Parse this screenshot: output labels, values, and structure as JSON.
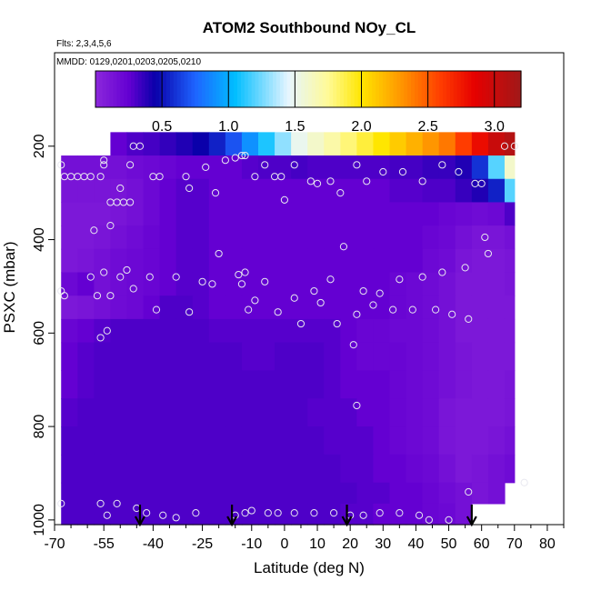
{
  "chart_data": {
    "type": "heatmap",
    "title": "ATOM2 Southbound NOy_CL",
    "notes": [
      "Flts: 2,3,4,5,6",
      "MMDD: 0129,0201,0203,0205,0210"
    ],
    "xlabel": "Latitude (deg N)",
    "ylabel": "PSXC (mbar)",
    "xlim": [
      -70,
      85
    ],
    "ylim": [
      1010,
      0
    ],
    "x_ticks": [
      -70,
      -55,
      -40,
      -25,
      -10,
      0,
      10,
      20,
      30,
      40,
      50,
      60,
      70,
      80
    ],
    "x_minor_ticks": [
      -65,
      -60,
      -50,
      -45,
      -35,
      -30,
      -20,
      -15,
      -5,
      5,
      15,
      25,
      35,
      45,
      55,
      65,
      75,
      85
    ],
    "y_ticks": [
      200,
      400,
      600,
      800,
      1000
    ],
    "colorbar": {
      "range": [
        0,
        3.2
      ],
      "ticks": [
        0.5,
        1.0,
        1.5,
        2.0,
        2.5,
        3.0
      ]
    },
    "field": {
      "lat_edges": [
        -68,
        -63,
        -58,
        -53,
        -48,
        -43,
        -38,
        -33,
        -28,
        -23,
        -18,
        -13,
        -8,
        -3,
        2,
        7,
        12,
        17,
        22,
        27,
        32,
        37,
        42,
        47,
        52,
        57,
        62,
        67,
        70
      ],
      "p_edges": [
        170,
        220,
        270,
        320,
        370,
        420,
        470,
        520,
        570,
        620,
        680,
        740,
        800,
        860,
        920,
        965,
        1010
      ],
      "values": [
        [
          null,
          null,
          null,
          0.25,
          0.3,
          0.32,
          0.36,
          0.4,
          0.45,
          0.55,
          0.7,
          0.9,
          1.1,
          1.3,
          1.5,
          1.6,
          1.7,
          1.8,
          1.9,
          2.0,
          2.1,
          2.2,
          2.3,
          2.4,
          2.6,
          2.8,
          3.0,
          3.1
        ],
        [
          0.15,
          0.15,
          0.15,
          0.15,
          0.18,
          0.2,
          0.22,
          0.25,
          0.25,
          0.25,
          0.25,
          0.28,
          0.3,
          0.3,
          0.32,
          0.3,
          0.3,
          0.3,
          0.3,
          0.3,
          0.32,
          0.32,
          0.35,
          0.35,
          0.4,
          0.6,
          1.2,
          1.6
        ],
        [
          0.12,
          0.12,
          0.12,
          0.12,
          0.15,
          0.2,
          0.25,
          0.28,
          0.28,
          0.25,
          0.25,
          0.25,
          0.25,
          0.25,
          0.25,
          0.25,
          0.25,
          0.25,
          0.25,
          0.25,
          0.28,
          0.28,
          0.3,
          0.3,
          0.35,
          0.4,
          0.55,
          1.2
        ],
        [
          0.1,
          0.1,
          0.1,
          0.12,
          0.15,
          0.2,
          0.25,
          0.28,
          0.28,
          0.25,
          0.25,
          0.25,
          0.25,
          0.25,
          0.25,
          0.25,
          0.25,
          0.25,
          0.25,
          0.25,
          0.25,
          0.25,
          0.25,
          0.22,
          0.2,
          0.18,
          0.2,
          0.3
        ],
        [
          0.1,
          0.1,
          0.12,
          0.15,
          0.18,
          0.22,
          0.25,
          0.28,
          0.28,
          0.25,
          0.25,
          0.25,
          0.25,
          0.25,
          0.25,
          0.25,
          0.25,
          0.25,
          0.25,
          0.25,
          0.25,
          0.25,
          0.22,
          0.2,
          0.15,
          0.12,
          0.12,
          0.15
        ],
        [
          0.1,
          0.12,
          0.15,
          0.18,
          0.2,
          0.22,
          0.25,
          0.28,
          0.28,
          0.25,
          0.25,
          0.25,
          0.25,
          0.25,
          0.25,
          0.25,
          0.25,
          0.25,
          0.25,
          0.25,
          0.25,
          0.25,
          0.2,
          0.18,
          0.12,
          0.1,
          0.1,
          0.12
        ],
        [
          0.2,
          0.25,
          0.15,
          0.18,
          0.2,
          0.22,
          0.25,
          0.28,
          0.28,
          0.25,
          0.25,
          0.25,
          0.25,
          0.25,
          0.25,
          0.25,
          0.25,
          0.25,
          0.25,
          0.25,
          0.22,
          0.2,
          0.18,
          0.15,
          0.1,
          0.1,
          0.1,
          0.12
        ],
        [
          0.1,
          0.12,
          0.15,
          0.18,
          0.2,
          0.25,
          0.3,
          0.3,
          0.28,
          0.25,
          0.25,
          0.25,
          0.25,
          0.25,
          0.25,
          0.25,
          0.25,
          0.25,
          0.25,
          0.25,
          0.22,
          0.2,
          0.18,
          0.15,
          0.1,
          0.1,
          0.1,
          0.1
        ],
        [
          0.22,
          0.25,
          0.28,
          0.3,
          0.3,
          0.3,
          0.3,
          0.3,
          0.3,
          0.28,
          0.28,
          0.28,
          0.28,
          0.28,
          0.28,
          0.28,
          0.28,
          0.25,
          0.22,
          0.22,
          0.2,
          0.2,
          0.18,
          0.15,
          0.1,
          0.1,
          0.1,
          0.1
        ],
        [
          0.25,
          0.28,
          0.3,
          0.3,
          0.3,
          0.3,
          0.3,
          0.3,
          0.3,
          0.3,
          0.3,
          0.28,
          0.28,
          0.3,
          0.3,
          0.3,
          0.28,
          0.25,
          0.22,
          0.22,
          0.22,
          0.2,
          0.18,
          0.15,
          0.12,
          0.1,
          0.1,
          0.1
        ],
        [
          0.25,
          0.28,
          0.3,
          0.3,
          0.3,
          0.3,
          0.3,
          0.3,
          0.3,
          0.3,
          0.3,
          0.3,
          0.3,
          0.3,
          0.3,
          0.3,
          0.28,
          0.25,
          0.25,
          0.25,
          0.22,
          0.2,
          0.18,
          0.15,
          0.12,
          0.1,
          0.1,
          0.12
        ],
        [
          0.28,
          0.3,
          0.3,
          0.3,
          0.3,
          0.3,
          0.3,
          0.3,
          0.3,
          0.3,
          0.3,
          0.3,
          0.3,
          0.3,
          0.3,
          0.28,
          0.28,
          0.28,
          0.25,
          0.25,
          0.22,
          0.2,
          0.18,
          0.12,
          0.1,
          0.1,
          0.1,
          0.12
        ],
        [
          0.3,
          0.3,
          0.3,
          0.3,
          0.3,
          0.3,
          0.3,
          0.3,
          0.3,
          0.3,
          0.3,
          0.3,
          0.3,
          0.3,
          0.3,
          0.3,
          0.28,
          0.28,
          0.28,
          0.25,
          0.22,
          0.2,
          0.18,
          0.12,
          0.1,
          0.1,
          0.12,
          0.15
        ],
        [
          0.3,
          0.3,
          0.3,
          0.3,
          0.3,
          0.3,
          0.3,
          0.3,
          0.3,
          0.3,
          0.3,
          0.3,
          0.3,
          0.3,
          0.3,
          0.3,
          0.3,
          0.28,
          0.28,
          0.25,
          0.25,
          0.22,
          0.2,
          0.15,
          0.1,
          0.12,
          0.15,
          0.18
        ],
        [
          0.3,
          0.3,
          0.3,
          0.3,
          0.3,
          0.3,
          0.3,
          0.3,
          0.3,
          0.3,
          0.3,
          0.3,
          0.3,
          0.3,
          0.3,
          0.3,
          0.3,
          0.3,
          0.28,
          0.28,
          0.25,
          0.25,
          0.22,
          0.18,
          0.15,
          0.12,
          0.15,
          null
        ],
        [
          0.3,
          0.3,
          0.3,
          0.3,
          0.3,
          0.3,
          0.3,
          0.3,
          0.3,
          0.3,
          0.3,
          0.3,
          0.3,
          0.3,
          0.3,
          0.3,
          0.3,
          0.28,
          0.28,
          0.25,
          0.25,
          0.25,
          0.22,
          0.2,
          0.15,
          null,
          null,
          null
        ]
      ]
    },
    "observations": [
      [
        -68,
        240
      ],
      [
        -67,
        265
      ],
      [
        -65,
        265
      ],
      [
        -63,
        265
      ],
      [
        -61,
        265
      ],
      [
        -59,
        265
      ],
      [
        -56,
        265
      ],
      [
        -55,
        230
      ],
      [
        -55,
        240
      ],
      [
        -53,
        320
      ],
      [
        -51,
        320
      ],
      [
        -49,
        320
      ],
      [
        -47,
        320
      ],
      [
        -50,
        290
      ],
      [
        -47,
        240
      ],
      [
        -46,
        200
      ],
      [
        -44,
        200
      ],
      [
        -40,
        265
      ],
      [
        -38,
        265
      ],
      [
        -30,
        265
      ],
      [
        -29,
        290
      ],
      [
        -24,
        245
      ],
      [
        -21,
        300
      ],
      [
        -18,
        230
      ],
      [
        -15,
        225
      ],
      [
        -13,
        220
      ],
      [
        -12,
        220
      ],
      [
        -9,
        265
      ],
      [
        -6,
        240
      ],
      [
        -3,
        265
      ],
      [
        -1,
        265
      ],
      [
        0,
        315
      ],
      [
        3,
        240
      ],
      [
        8,
        275
      ],
      [
        10,
        280
      ],
      [
        14,
        275
      ],
      [
        17,
        300
      ],
      [
        22,
        240
      ],
      [
        25,
        275
      ],
      [
        30,
        255
      ],
      [
        36,
        255
      ],
      [
        42,
        275
      ],
      [
        48,
        240
      ],
      [
        53,
        255
      ],
      [
        58,
        280
      ],
      [
        60,
        280
      ],
      [
        67,
        200
      ],
      [
        70,
        200
      ],
      [
        -68,
        510
      ],
      [
        -67,
        520
      ],
      [
        -59,
        480
      ],
      [
        -57,
        520
      ],
      [
        -55,
        470
      ],
      [
        -53,
        520
      ],
      [
        -50,
        480
      ],
      [
        -48,
        465
      ],
      [
        -46,
        505
      ],
      [
        -41,
        480
      ],
      [
        -39,
        550
      ],
      [
        -33,
        480
      ],
      [
        -29,
        555
      ],
      [
        -25,
        490
      ],
      [
        -22,
        495
      ],
      [
        -20,
        430
      ],
      [
        -14,
        475
      ],
      [
        -13,
        495
      ],
      [
        -12,
        470
      ],
      [
        -11,
        550
      ],
      [
        -9,
        530
      ],
      [
        -6,
        490
      ],
      [
        -2,
        555
      ],
      [
        3,
        525
      ],
      [
        5,
        580
      ],
      [
        9,
        510
      ],
      [
        11,
        535
      ],
      [
        14,
        485
      ],
      [
        16,
        580
      ],
      [
        18,
        415
      ],
      [
        21,
        625
      ],
      [
        22,
        560
      ],
      [
        24,
        510
      ],
      [
        27,
        540
      ],
      [
        29,
        515
      ],
      [
        33,
        550
      ],
      [
        35,
        485
      ],
      [
        39,
        550
      ],
      [
        42,
        480
      ],
      [
        46,
        550
      ],
      [
        48,
        470
      ],
      [
        51,
        560
      ],
      [
        55,
        460
      ],
      [
        56,
        570
      ],
      [
        61,
        395
      ],
      [
        62,
        430
      ],
      [
        -56,
        610
      ],
      [
        -54,
        595
      ],
      [
        -58,
        380
      ],
      [
        -53,
        370
      ],
      [
        -68,
        965
      ],
      [
        -56,
        965
      ],
      [
        -54,
        990
      ],
      [
        -51,
        965
      ],
      [
        -45,
        975
      ],
      [
        -42,
        985
      ],
      [
        -37,
        990
      ],
      [
        -33,
        995
      ],
      [
        -27,
        985
      ],
      [
        -15,
        990
      ],
      [
        -12,
        985
      ],
      [
        -10,
        980
      ],
      [
        -5,
        985
      ],
      [
        -2,
        985
      ],
      [
        3,
        985
      ],
      [
        9,
        985
      ],
      [
        15,
        985
      ],
      [
        20,
        990
      ],
      [
        24,
        990
      ],
      [
        29,
        985
      ],
      [
        35,
        985
      ],
      [
        41,
        990
      ],
      [
        44,
        1000
      ],
      [
        50,
        1000
      ],
      [
        56,
        940
      ],
      [
        73,
        920
      ],
      [
        22,
        755
      ]
    ],
    "flight_arrows": [
      -44,
      -16,
      19,
      57
    ]
  }
}
